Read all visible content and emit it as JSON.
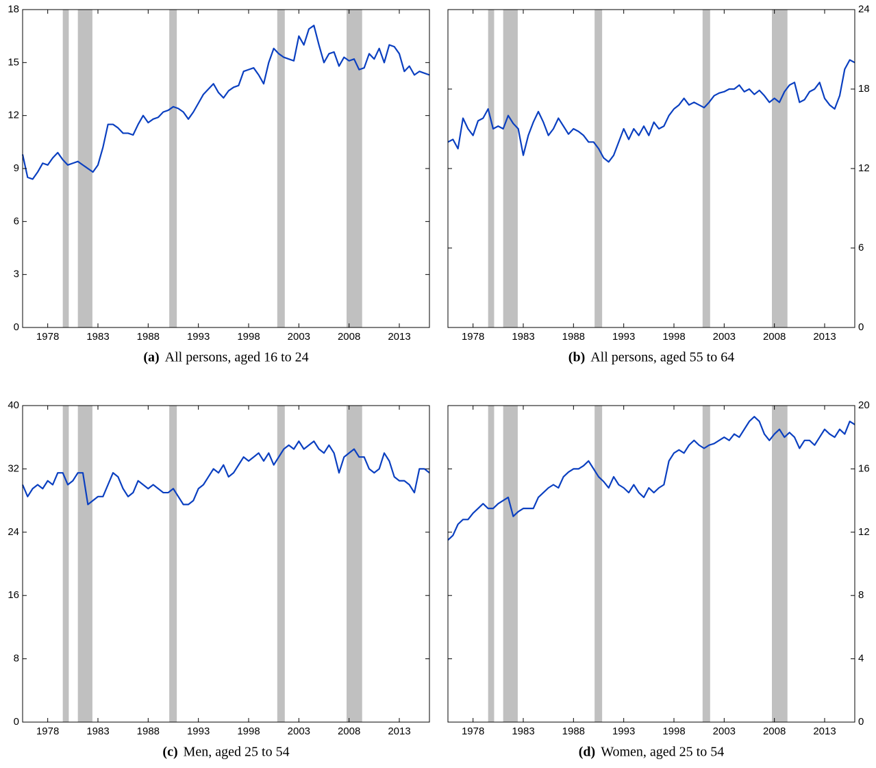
{
  "chart_data": [
    {
      "type": "line",
      "label": "(a)",
      "caption": "All persons, aged 16 to 24",
      "yaxis_side": "left",
      "color": "#0a3fc0",
      "band_color": "#c0c0c0",
      "xlim": [
        1975.5,
        2016
      ],
      "xticks": [
        1978,
        1983,
        1988,
        1993,
        1998,
        2003,
        2008,
        2013
      ],
      "ylim": [
        0,
        18
      ],
      "yticks": [
        0,
        3,
        6,
        9,
        12,
        15,
        18
      ],
      "bands": [
        [
          1979.5,
          1980.1
        ],
        [
          1981,
          1982.45
        ],
        [
          1990.1,
          1990.85
        ],
        [
          2000.85,
          2001.6
        ],
        [
          2007.75,
          2009.3
        ]
      ],
      "x": [
        1975.5,
        1976,
        1976.5,
        1977,
        1977.5,
        1978,
        1978.5,
        1979,
        1979.5,
        1980,
        1980.5,
        1981,
        1981.5,
        1982,
        1982.5,
        1983,
        1983.5,
        1984,
        1984.5,
        1985,
        1985.5,
        1986,
        1986.5,
        1987,
        1987.5,
        1988,
        1988.5,
        1989,
        1989.5,
        1990,
        1990.5,
        1991,
        1991.5,
        1992,
        1992.5,
        1993,
        1993.5,
        1994,
        1994.5,
        1995,
        1995.5,
        1996,
        1996.5,
        1997,
        1997.5,
        1998,
        1998.5,
        1999,
        1999.5,
        2000,
        2000.5,
        2001,
        2001.5,
        2002,
        2002.5,
        2003,
        2003.5,
        2004,
        2004.5,
        2005,
        2005.5,
        2006,
        2006.5,
        2007,
        2007.5,
        2008,
        2008.5,
        2009,
        2009.5,
        2010,
        2010.5,
        2011,
        2011.5,
        2012,
        2012.5,
        2013,
        2013.5,
        2014,
        2014.5,
        2015,
        2015.5,
        2016
      ],
      "values": [
        9.8,
        8.5,
        8.4,
        8.8,
        9.3,
        9.2,
        9.6,
        9.9,
        9.5,
        9.2,
        9.3,
        9.4,
        9.2,
        9.0,
        8.8,
        9.2,
        10.2,
        11.5,
        11.5,
        11.3,
        11.0,
        11.0,
        10.9,
        11.5,
        12.0,
        11.6,
        11.8,
        11.9,
        12.2,
        12.3,
        12.5,
        12.4,
        12.2,
        11.8,
        12.2,
        12.7,
        13.2,
        13.5,
        13.8,
        13.3,
        13.0,
        13.4,
        13.6,
        13.7,
        14.5,
        14.6,
        14.7,
        14.3,
        13.8,
        15.0,
        15.8,
        15.5,
        15.3,
        15.2,
        15.1,
        16.5,
        16.0,
        16.9,
        17.1,
        16.0,
        15.0,
        15.5,
        15.6,
        14.8,
        15.3,
        15.1,
        15.2,
        14.6,
        14.7,
        15.5,
        15.2,
        15.8,
        15.0,
        16.0,
        15.9,
        15.5,
        14.5,
        14.8,
        14.3,
        14.5,
        14.4,
        14.3
      ]
    },
    {
      "type": "line",
      "label": "(b)",
      "caption": "All persons, aged 55 to 64",
      "yaxis_side": "right",
      "color": "#0a3fc0",
      "band_color": "#c0c0c0",
      "xlim": [
        1975.5,
        2016
      ],
      "xticks": [
        1978,
        1983,
        1988,
        1993,
        1998,
        2003,
        2008,
        2013
      ],
      "ylim": [
        0,
        24
      ],
      "yticks": [
        0,
        6,
        12,
        18,
        24
      ],
      "bands": [
        [
          1979.5,
          1980.1
        ],
        [
          1981,
          1982.45
        ],
        [
          1990.1,
          1990.85
        ],
        [
          2000.85,
          2001.6
        ],
        [
          2007.75,
          2009.3
        ]
      ],
      "x": [
        1975.5,
        1976,
        1976.5,
        1977,
        1977.5,
        1978,
        1978.5,
        1979,
        1979.5,
        1980,
        1980.5,
        1981,
        1981.5,
        1982,
        1982.5,
        1983,
        1983.5,
        1984,
        1984.5,
        1985,
        1985.5,
        1986,
        1986.5,
        1987,
        1987.5,
        1988,
        1988.5,
        1989,
        1989.5,
        1990,
        1990.5,
        1991,
        1991.5,
        1992,
        1992.5,
        1993,
        1993.5,
        1994,
        1994.5,
        1995,
        1995.5,
        1996,
        1996.5,
        1997,
        1997.5,
        1998,
        1998.5,
        1999,
        1999.5,
        2000,
        2000.5,
        2001,
        2001.5,
        2002,
        2002.5,
        2003,
        2003.5,
        2004,
        2004.5,
        2005,
        2005.5,
        2006,
        2006.5,
        2007,
        2007.5,
        2008,
        2008.5,
        2009,
        2009.5,
        2010,
        2010.5,
        2011,
        2011.5,
        2012,
        2012.5,
        2013,
        2013.5,
        2014,
        2014.5,
        2015,
        2015.5,
        2016
      ],
      "values": [
        14.0,
        14.2,
        13.5,
        15.8,
        15.0,
        14.5,
        15.6,
        15.8,
        16.5,
        15.0,
        15.2,
        15.0,
        16.0,
        15.4,
        15.0,
        13.0,
        14.5,
        15.5,
        16.3,
        15.5,
        14.5,
        15.0,
        15.8,
        15.2,
        14.6,
        15.0,
        14.8,
        14.5,
        14.0,
        14.0,
        13.5,
        12.8,
        12.5,
        13.0,
        14.0,
        15.0,
        14.2,
        15.0,
        14.5,
        15.2,
        14.5,
        15.5,
        15.0,
        15.2,
        16.0,
        16.5,
        16.8,
        17.3,
        16.8,
        17.0,
        16.8,
        16.6,
        17.0,
        17.5,
        17.7,
        17.8,
        18.0,
        18.0,
        18.3,
        17.8,
        18.0,
        17.6,
        17.9,
        17.5,
        17.0,
        17.3,
        17.0,
        17.8,
        18.3,
        18.5,
        17.0,
        17.2,
        17.8,
        18.0,
        18.5,
        17.3,
        16.8,
        16.5,
        17.5,
        19.5,
        20.2,
        20.0
      ]
    },
    {
      "type": "line",
      "label": "(c)",
      "caption": "Men, aged 25 to 54",
      "yaxis_side": "left",
      "color": "#0a3fc0",
      "band_color": "#c0c0c0",
      "xlim": [
        1975.5,
        2016
      ],
      "xticks": [
        1978,
        1983,
        1988,
        1993,
        1998,
        2003,
        2008,
        2013
      ],
      "ylim": [
        0,
        40
      ],
      "yticks": [
        0,
        8,
        16,
        24,
        32,
        40
      ],
      "bands": [
        [
          1979.5,
          1980.1
        ],
        [
          1981,
          1982.45
        ],
        [
          1990.1,
          1990.85
        ],
        [
          2000.85,
          2001.6
        ],
        [
          2007.75,
          2009.3
        ]
      ],
      "x": [
        1975.5,
        1976,
        1976.5,
        1977,
        1977.5,
        1978,
        1978.5,
        1979,
        1979.5,
        1980,
        1980.5,
        1981,
        1981.5,
        1982,
        1982.5,
        1983,
        1983.5,
        1984,
        1984.5,
        1985,
        1985.5,
        1986,
        1986.5,
        1987,
        1987.5,
        1988,
        1988.5,
        1989,
        1989.5,
        1990,
        1990.5,
        1991,
        1991.5,
        1992,
        1992.5,
        1993,
        1993.5,
        1994,
        1994.5,
        1995,
        1995.5,
        1996,
        1996.5,
        1997,
        1997.5,
        1998,
        1998.5,
        1999,
        1999.5,
        2000,
        2000.5,
        2001,
        2001.5,
        2002,
        2002.5,
        2003,
        2003.5,
        2004,
        2004.5,
        2005,
        2005.5,
        2006,
        2006.5,
        2007,
        2007.5,
        2008,
        2008.5,
        2009,
        2009.5,
        2010,
        2010.5,
        2011,
        2011.5,
        2012,
        2012.5,
        2013,
        2013.5,
        2014,
        2014.5,
        2015,
        2015.5,
        2016
      ],
      "values": [
        30,
        28.5,
        29.5,
        30,
        29.5,
        30.5,
        30,
        31.5,
        31.5,
        30,
        30.5,
        31.5,
        31.5,
        27.5,
        28,
        28.5,
        28.5,
        30,
        31.5,
        31,
        29.5,
        28.5,
        29,
        30.5,
        30,
        29.5,
        30,
        29.5,
        29,
        29,
        29.5,
        28.5,
        27.5,
        27.5,
        28,
        29.5,
        30,
        31,
        32,
        31.5,
        32.5,
        31,
        31.5,
        32.5,
        33.5,
        33,
        33.5,
        34,
        33,
        34,
        32.5,
        33.5,
        34.5,
        35,
        34.5,
        35.5,
        34.5,
        35,
        35.5,
        34.5,
        34,
        35,
        34,
        31.5,
        33.5,
        34,
        34.5,
        33.5,
        33.5,
        32,
        31.5,
        32,
        34,
        33,
        31,
        30.5,
        30.5,
        30,
        29,
        32,
        32,
        31.5
      ]
    },
    {
      "type": "line",
      "label": "(d)",
      "caption": "Women, aged 25 to 54",
      "yaxis_side": "right",
      "color": "#0a3fc0",
      "band_color": "#c0c0c0",
      "xlim": [
        1975.5,
        2016
      ],
      "xticks": [
        1978,
        1983,
        1988,
        1993,
        1998,
        2003,
        2008,
        2013
      ],
      "ylim": [
        0,
        20
      ],
      "yticks": [
        0,
        4,
        8,
        12,
        16,
        20
      ],
      "bands": [
        [
          1979.5,
          1980.1
        ],
        [
          1981,
          1982.45
        ],
        [
          1990.1,
          1990.85
        ],
        [
          2000.85,
          2001.6
        ],
        [
          2007.75,
          2009.3
        ]
      ],
      "x": [
        1975.5,
        1976,
        1976.5,
        1977,
        1977.5,
        1978,
        1978.5,
        1979,
        1979.5,
        1980,
        1980.5,
        1981,
        1981.5,
        1982,
        1982.5,
        1983,
        1983.5,
        1984,
        1984.5,
        1985,
        1985.5,
        1986,
        1986.5,
        1987,
        1987.5,
        1988,
        1988.5,
        1989,
        1989.5,
        1990,
        1990.5,
        1991,
        1991.5,
        1992,
        1992.5,
        1993,
        1993.5,
        1994,
        1994.5,
        1995,
        1995.5,
        1996,
        1996.5,
        1997,
        1997.5,
        1998,
        1998.5,
        1999,
        1999.5,
        2000,
        2000.5,
        2001,
        2001.5,
        2002,
        2002.5,
        2003,
        2003.5,
        2004,
        2004.5,
        2005,
        2005.5,
        2006,
        2006.5,
        2007,
        2007.5,
        2008,
        2008.5,
        2009,
        2009.5,
        2010,
        2010.5,
        2011,
        2011.5,
        2012,
        2012.5,
        2013,
        2013.5,
        2014,
        2014.5,
        2015,
        2015.5,
        2016
      ],
      "values": [
        11.5,
        11.8,
        12.5,
        12.8,
        12.8,
        13.2,
        13.5,
        13.8,
        13.5,
        13.5,
        13.8,
        14.0,
        14.2,
        13.0,
        13.3,
        13.5,
        13.5,
        13.5,
        14.2,
        14.5,
        14.8,
        15.0,
        14.8,
        15.5,
        15.8,
        16.0,
        16.0,
        16.2,
        16.5,
        16.0,
        15.5,
        15.2,
        14.8,
        15.5,
        15.0,
        14.8,
        14.5,
        15.0,
        14.5,
        14.2,
        14.8,
        14.5,
        14.8,
        15.0,
        16.5,
        17.0,
        17.2,
        17.0,
        17.5,
        17.8,
        17.5,
        17.3,
        17.5,
        17.6,
        17.8,
        18.0,
        17.8,
        18.2,
        18.0,
        18.5,
        19.0,
        19.3,
        19.0,
        18.2,
        17.8,
        18.2,
        18.5,
        18.0,
        18.3,
        18.0,
        17.3,
        17.8,
        17.8,
        17.5,
        18.0,
        18.5,
        18.2,
        18.0,
        18.5,
        18.2,
        19.0,
        18.8
      ]
    }
  ]
}
